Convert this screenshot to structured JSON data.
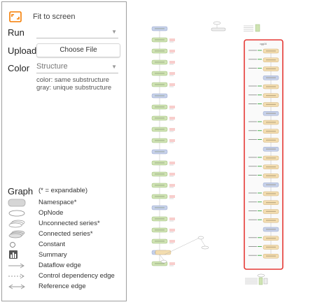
{
  "sidebar": {
    "fit_label": "Fit to screen",
    "run_label": "Run",
    "run_value": "",
    "upload_label": "Upload",
    "choose_file_label": "Choose File",
    "color_label": "Color",
    "color_value": "Structure",
    "color_note_1": "color: same substructure",
    "color_note_2": "gray: unique substructure",
    "graph_title": "Graph",
    "graph_hint": "(* = expandable)",
    "legend": [
      {
        "label": "Namespace*"
      },
      {
        "label": "OpNode"
      },
      {
        "label": "Unconnected series*"
      },
      {
        "label": "Connected series*"
      },
      {
        "label": "Constant"
      },
      {
        "label": "Summary"
      },
      {
        "label": "Dataflow edge"
      },
      {
        "label": "Control dependency edge"
      },
      {
        "label": "Reference edge"
      }
    ]
  },
  "graph": {
    "accent": "#f57c00",
    "highlight": "#e53935",
    "namespace_label": "vgg16"
  }
}
